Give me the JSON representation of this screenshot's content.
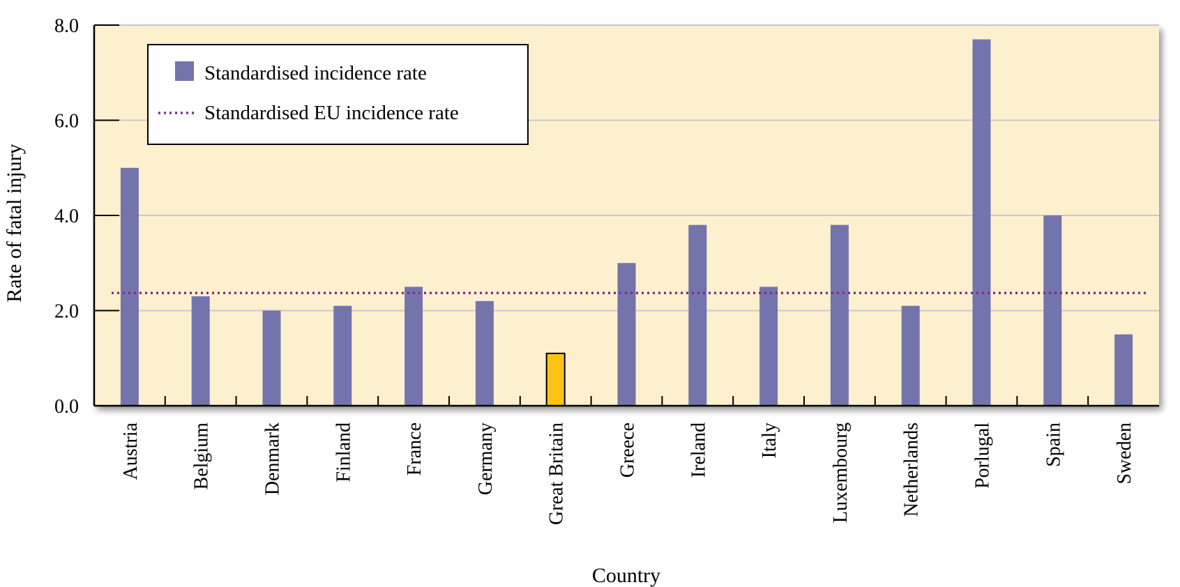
{
  "chart_data": {
    "type": "bar",
    "xlabel": "Country",
    "ylabel": "Rate of fatal injury",
    "ylim": [
      0,
      8
    ],
    "yticks": [
      "0.0",
      "2.0",
      "4.0",
      "6.0",
      "8.0"
    ],
    "grid": true,
    "legend_position": "top-left",
    "categories": [
      "Austria",
      "Belgium",
      "Denmark",
      "Finland",
      "France",
      "Germany",
      "Great Britain",
      "Greece",
      "Ireland",
      "Italy",
      "Luxembourg",
      "Netherlands",
      "Porlugal",
      "Spain",
      "Sweden"
    ],
    "series": [
      {
        "name": "Standardised incidence rate",
        "values": [
          5.0,
          2.3,
          2.0,
          2.1,
          2.5,
          2.2,
          1.1,
          3.0,
          3.8,
          2.5,
          3.8,
          2.1,
          7.7,
          4.0,
          1.5
        ],
        "highlight": {
          "category": "Great Britain",
          "color": "#fdc216"
        }
      }
    ],
    "reference_line": {
      "name": "Standardised EU incidence rate",
      "value": 2.37
    }
  },
  "colors": {
    "bar": "#7474ac",
    "bar_highlight": "#fdc216",
    "plot_background": "#fdf0cf",
    "reference_line": "#7a2f86",
    "gridline": "#c9c9cf"
  }
}
